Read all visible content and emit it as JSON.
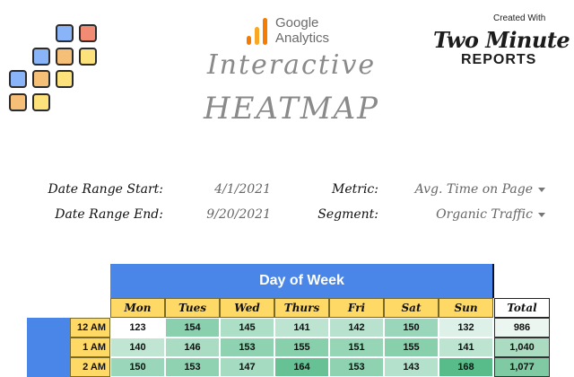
{
  "brand": {
    "ga_line1": "Google",
    "ga_line2": "Analytics",
    "title_line1": "Interactive",
    "title_line2": "HEATMAP",
    "created_with": "Created With",
    "tmr_top": "Two Minute",
    "tmr_bottom": "REPORTS"
  },
  "filters": {
    "date_start_label": "Date Range Start:",
    "date_start_value": "4/1/2021",
    "date_end_label": "Date Range End:",
    "date_end_value": "9/20/2021",
    "metric_label": "Metric:",
    "metric_value": "Avg. Time on Page",
    "segment_label": "Segment:",
    "segment_value": "Organic Traffic"
  },
  "heatmap": {
    "header": "Day of Week",
    "days": [
      "Mon",
      "Tues",
      "Wed",
      "Thurs",
      "Fri",
      "Sat",
      "Sun"
    ],
    "total_label": "Total",
    "rows": [
      {
        "hour": "12 AM",
        "values": [
          123,
          154,
          145,
          141,
          142,
          150,
          132
        ],
        "total": "986"
      },
      {
        "hour": "1 AM",
        "values": [
          140,
          146,
          153,
          155,
          151,
          155,
          141
        ],
        "total": "1,040"
      },
      {
        "hour": "2 AM",
        "values": [
          150,
          153,
          147,
          164,
          153,
          143,
          168
        ],
        "total": "1,077"
      }
    ],
    "colors": {
      "low": "#ffffff",
      "high": "#57bb8a",
      "total_low": "#eaf6ef",
      "total_high": "#7fcaa2"
    }
  }
}
